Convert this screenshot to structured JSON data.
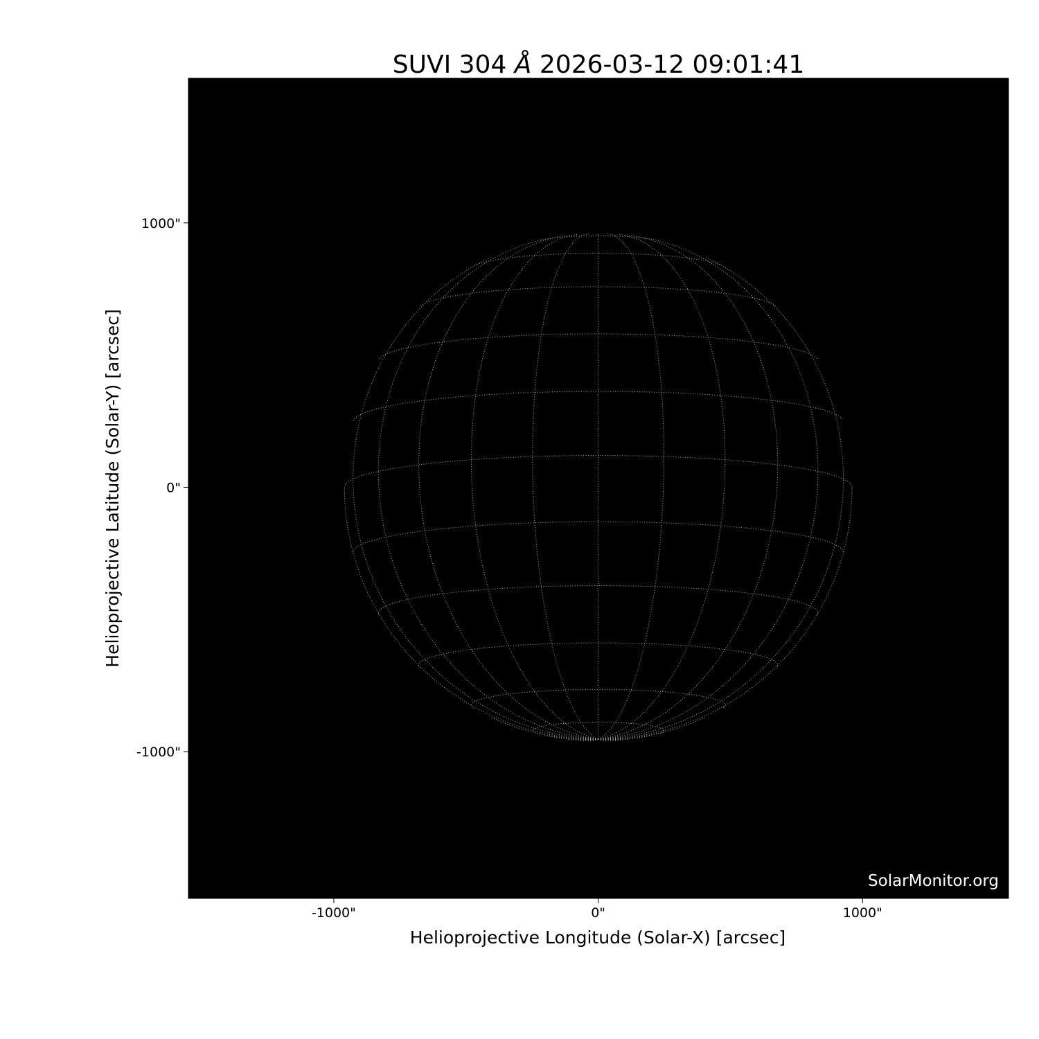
{
  "chart_data": {
    "type": "image",
    "title_prefix": "SUVI 304 ",
    "title_unit": "Å",
    "title_suffix": " 2026-03-12 09:01:41",
    "xlabel": "Helioprojective Longitude (Solar-X) [arcsec]",
    "ylabel": "Helioprojective Latitude (Solar-Y) [arcsec]",
    "xlim": [
      -1550,
      1552
    ],
    "ylim": [
      -1555,
      1547
    ],
    "xticks": [
      {
        "value": -1000,
        "label": "-1000\""
      },
      {
        "value": 0,
        "label": "0\""
      },
      {
        "value": 1000,
        "label": "1000\""
      }
    ],
    "yticks": [
      {
        "value": 1000,
        "label": "1000\""
      },
      {
        "value": 0,
        "label": "0\""
      },
      {
        "value": -1000,
        "label": "-1000\""
      }
    ],
    "background_color": "#000000",
    "grid_color": "#b0b0b0",
    "heliographic_grid": {
      "solar_radius_arcsec": 960,
      "b0_deg": -7.2,
      "spacing_deg": 15,
      "line_style": "dotted"
    },
    "watermark": "SolarMonitor.org"
  }
}
